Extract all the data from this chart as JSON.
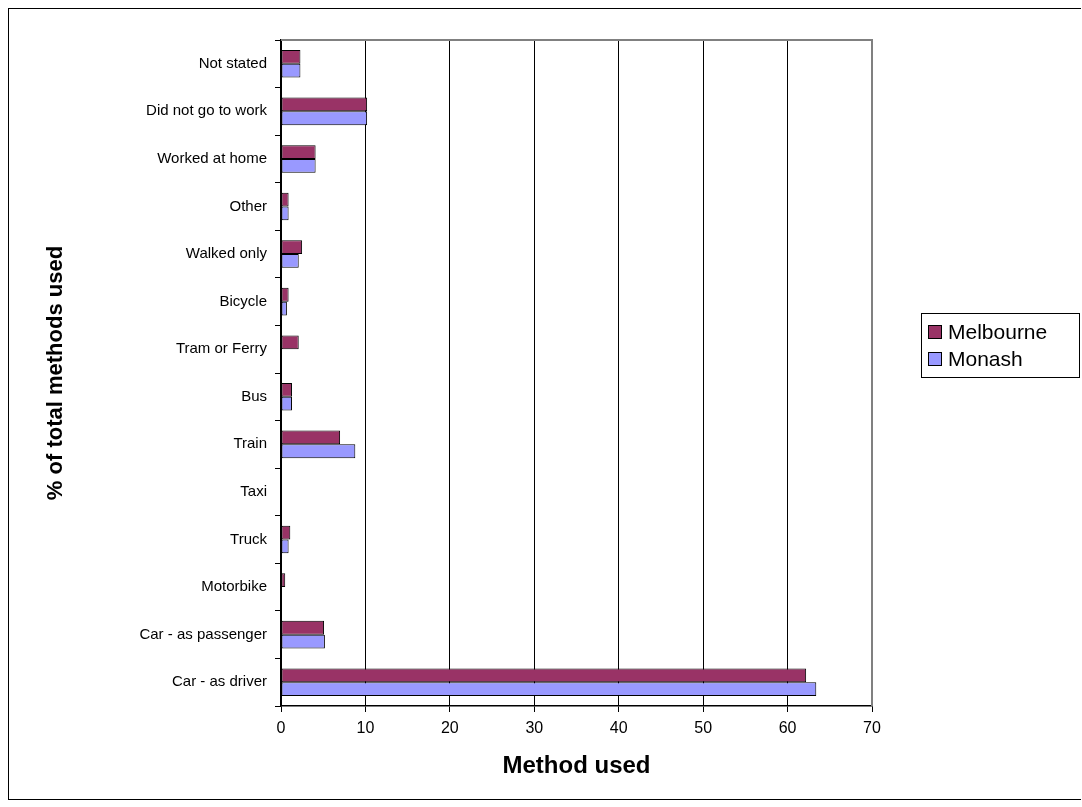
{
  "chart_data": {
    "type": "bar",
    "orientation": "horizontal",
    "xlabel": "Method used",
    "ylabel": "% of total methods used",
    "categories": [
      "Not stated",
      "Did not go to work",
      "Worked at home",
      "Other",
      "Walked only",
      "Bicycle",
      "Tram or Ferry",
      "Bus",
      "Train",
      "Taxi",
      "Truck",
      "Motorbike",
      "Car - as passenger",
      "Car - as driver"
    ],
    "series": [
      {
        "name": "Melbourne",
        "color": "#993366",
        "values": [
          2.3,
          10.2,
          4.1,
          0.9,
          2.5,
          0.9,
          2.1,
          1.3,
          7.0,
          0,
          1.1,
          0.5,
          5.1,
          62.2
        ]
      },
      {
        "name": "Monash",
        "color": "#9999ff",
        "values": [
          2.3,
          10.2,
          4.1,
          0.9,
          2.1,
          0.7,
          0,
          1.3,
          8.8,
          0,
          0.9,
          0,
          5.2,
          63.4
        ]
      }
    ],
    "xlim": [
      0,
      70
    ],
    "xticks": [
      0,
      10,
      20,
      30,
      40,
      50,
      60,
      70
    ],
    "grid": "x",
    "legend": "right"
  }
}
